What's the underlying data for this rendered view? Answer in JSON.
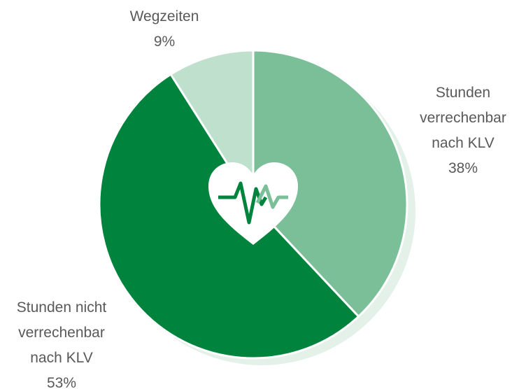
{
  "chart_data": {
    "type": "pie",
    "categories": [
      "Stunden verrechenbar nach KLV",
      "Stunden nicht verrechenbar nach KLV",
      "Wegzeiten"
    ],
    "values": [
      38,
      53,
      9
    ],
    "value_labels": [
      "38%",
      "53%",
      "9%"
    ],
    "colors": [
      "#7bbf98",
      "#00843d",
      "#bfe0cd"
    ]
  }
}
